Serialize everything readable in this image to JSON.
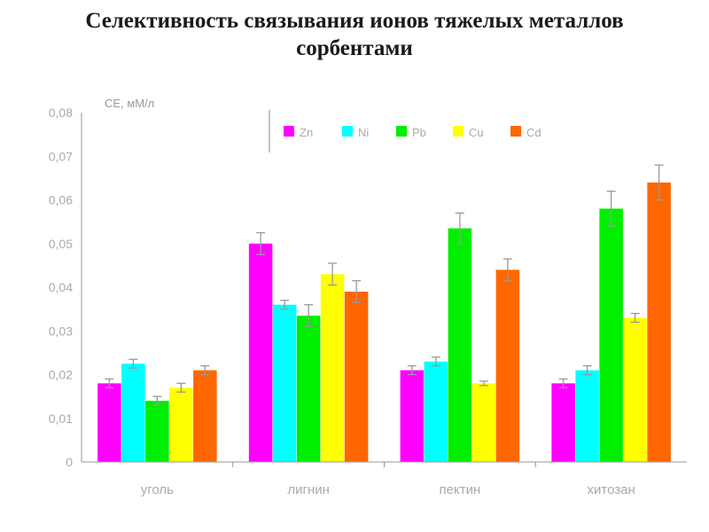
{
  "title": "Селективность связывания ионов тяжелых металлов сорбентами",
  "chart_data": {
    "type": "bar",
    "ylabel": "CE, мМ/л",
    "xlabel": "",
    "ylim": [
      0,
      0.08
    ],
    "yticks": [
      "0",
      "0,01",
      "0,02",
      "0,03",
      "0,04",
      "0,05",
      "0,06",
      "0,07",
      "0,08"
    ],
    "categories": [
      "уголь",
      "лигнин",
      "пектин",
      "хитозан"
    ],
    "grid": false,
    "legend_position": "top",
    "series": [
      {
        "name": "Zn",
        "color": "#ff00ff",
        "values": [
          0.018,
          0.05,
          0.021,
          0.018
        ],
        "errors": [
          0.001,
          0.0025,
          0.001,
          0.001
        ]
      },
      {
        "name": "Ni",
        "color": "#00ffff",
        "values": [
          0.0225,
          0.036,
          0.023,
          0.021
        ],
        "errors": [
          0.001,
          0.001,
          0.001,
          0.001
        ]
      },
      {
        "name": "Pb",
        "color": "#00ee00",
        "values": [
          0.014,
          0.0335,
          0.0535,
          0.058
        ],
        "errors": [
          0.001,
          0.0025,
          0.0035,
          0.004
        ]
      },
      {
        "name": "Cu",
        "color": "#ffff00",
        "values": [
          0.017,
          0.043,
          0.018,
          0.033
        ],
        "errors": [
          0.001,
          0.0025,
          0.0005,
          0.001
        ]
      },
      {
        "name": "Cd",
        "color": "#ff6600",
        "values": [
          0.021,
          0.039,
          0.044,
          0.064
        ],
        "errors": [
          0.001,
          0.0025,
          0.0025,
          0.004
        ]
      }
    ]
  }
}
